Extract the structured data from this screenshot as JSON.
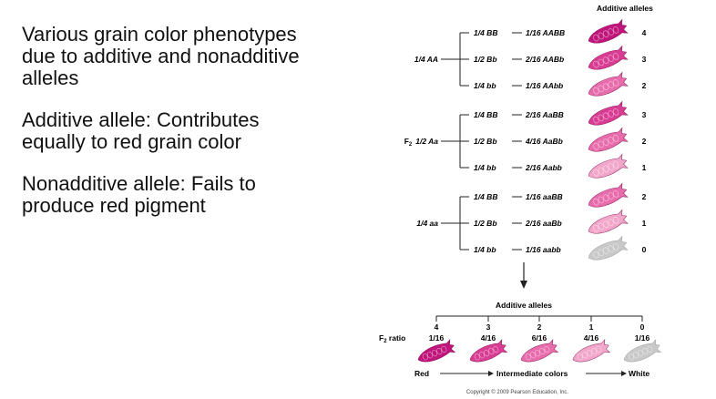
{
  "text_blocks": [
    "Various grain color phenotypes due to additive and nonadditive alleles",
    "Additive allele: Contributes equally to red grain color",
    "Nonadditive allele: Fails to produce red pigment"
  ],
  "colors": {
    "grain_shades": [
      "#c0157a",
      "#d83c93",
      "#e86cab",
      "#f2a6ca",
      "#c8c8c8"
    ],
    "line": "#222222"
  },
  "diagram": {
    "header_additive": "Additive alleles",
    "f2_prefix": "F",
    "f2_sub": "2",
    "groups": [
      {
        "label": "1/4 AA",
        "rows": [
          {
            "left": "1/4 BB",
            "right": "1/16 AABB",
            "count": "4",
            "shade": 0
          },
          {
            "left": "1/2 Bb",
            "right": "2/16 AABb",
            "count": "3",
            "shade": 1
          },
          {
            "left": "1/4 bb",
            "right": "1/16 AAbb",
            "count": "2",
            "shade": 2
          }
        ]
      },
      {
        "label": "1/2 Aa",
        "rows": [
          {
            "left": "1/4 BB",
            "right": "2/16 AaBB",
            "count": "3",
            "shade": 1
          },
          {
            "left": "1/2 Bb",
            "right": "4/16 AaBb",
            "count": "2",
            "shade": 2
          },
          {
            "left": "1/4 bb",
            "right": "2/16 Aabb",
            "count": "1",
            "shade": 3
          }
        ]
      },
      {
        "label": "1/4 aa",
        "rows": [
          {
            "left": "1/4 BB",
            "right": "1/16 aaBB",
            "count": "2",
            "shade": 2
          },
          {
            "left": "1/2 Bb",
            "right": "2/16 aaBb",
            "count": "1",
            "shade": 3
          },
          {
            "left": "1/4 bb",
            "right": "1/16 aabb",
            "count": "0",
            "shade": 4
          }
        ]
      }
    ],
    "ratio": {
      "header": "Additive alleles",
      "label_suffix": " ratio",
      "columns": [
        {
          "count": "4",
          "ratio": "1/16",
          "shade": 0
        },
        {
          "count": "3",
          "ratio": "4/16",
          "shade": 1
        },
        {
          "count": "2",
          "ratio": "6/16",
          "shade": 2
        },
        {
          "count": "1",
          "ratio": "4/16",
          "shade": 3
        },
        {
          "count": "0",
          "ratio": "1/16",
          "shade": 4
        }
      ],
      "scale_left": "Red",
      "scale_mid": "Intermediate colors",
      "scale_right": "White"
    },
    "copyright": "Copyright © 2009 Pearson Education, Inc."
  }
}
